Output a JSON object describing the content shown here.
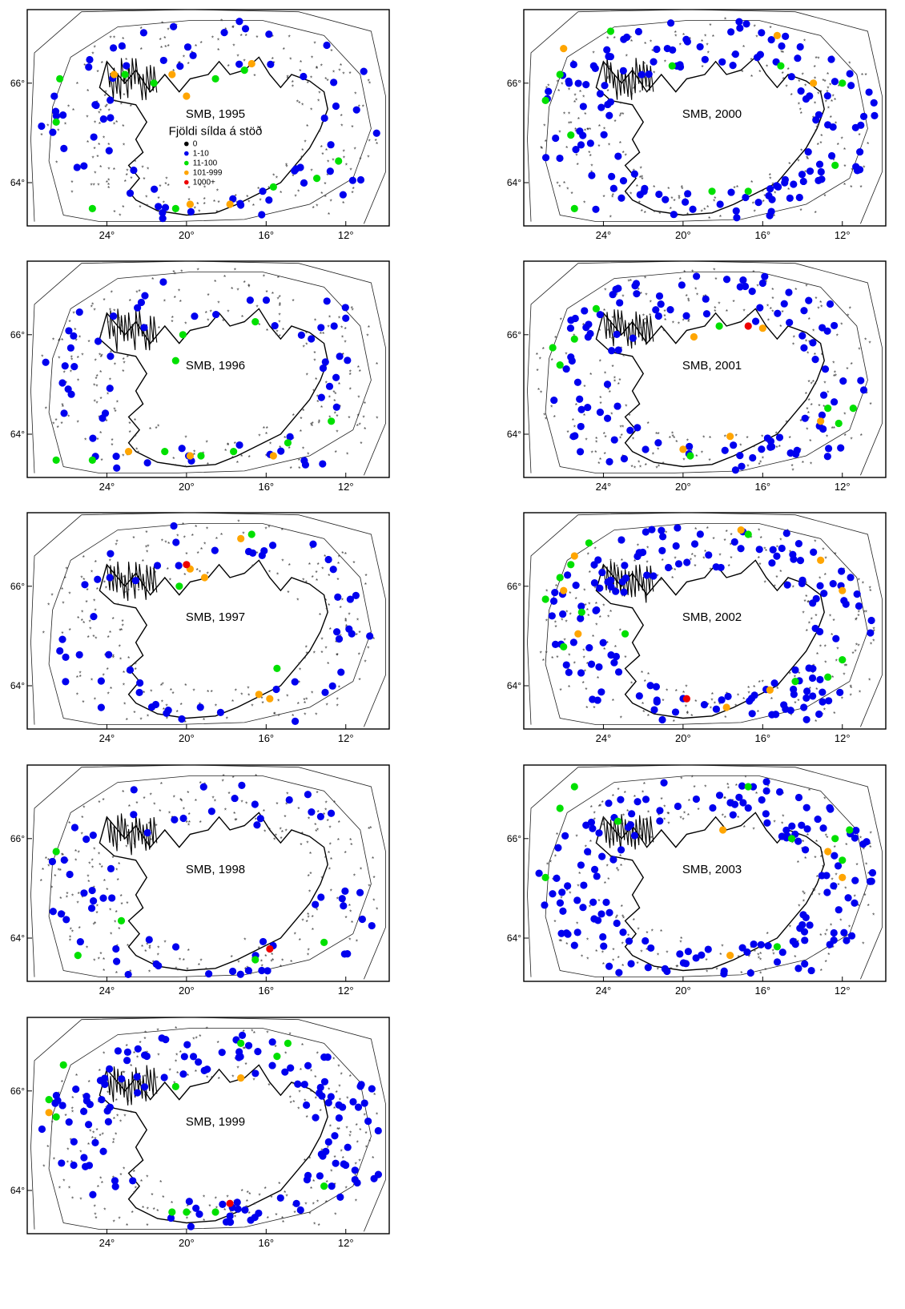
{
  "figure": {
    "colors": {
      "0": "#000000",
      "1-10": "#0000ee",
      "11-100": "#00e000",
      "101-999": "#ffa500",
      "1000+": "#ee0000",
      "grid_marker": "#333333",
      "frame": "#000000"
    },
    "legend": {
      "title": "Fjöldi sílda á stöð",
      "entries": [
        {
          "label": "0",
          "color_key": "0"
        },
        {
          "label": "1-10",
          "color_key": "1-10"
        },
        {
          "label": "11-100",
          "color_key": "11-100"
        },
        {
          "label": "101-999",
          "color_key": "101-999"
        },
        {
          "label": "1000+",
          "color_key": "1000+"
        }
      ]
    },
    "x_ticks": [
      "24°",
      "20°",
      "16°",
      "12°"
    ],
    "y_ticks": [
      "66°",
      "64°"
    ],
    "panels": [
      {
        "label": "SMB, 1995",
        "has_legend": true,
        "orange": [
          [
            0.24,
            0.3
          ],
          [
            0.4,
            0.3
          ],
          [
            0.62,
            0.25
          ],
          [
            0.45,
            0.9
          ],
          [
            0.56,
            0.9
          ],
          [
            0.44,
            0.4
          ]
        ],
        "red": [],
        "green": [
          [
            0.09,
            0.32
          ],
          [
            0.18,
            0.92
          ],
          [
            0.27,
            0.3
          ],
          [
            0.41,
            0.92
          ],
          [
            0.52,
            0.32
          ],
          [
            0.6,
            0.28
          ],
          [
            0.68,
            0.82
          ],
          [
            0.8,
            0.78
          ],
          [
            0.86,
            0.7
          ],
          [
            0.35,
            0.34
          ],
          [
            0.08,
            0.52
          ]
        ]
      },
      {
        "label": "SMB, 2000",
        "has_legend": false,
        "orange": [
          [
            0.11,
            0.18
          ],
          [
            0.7,
            0.12
          ],
          [
            0.8,
            0.34
          ]
        ],
        "red": [],
        "green": [
          [
            0.06,
            0.42
          ],
          [
            0.1,
            0.3
          ],
          [
            0.13,
            0.58
          ],
          [
            0.24,
            0.1
          ],
          [
            0.41,
            0.26
          ],
          [
            0.52,
            0.84
          ],
          [
            0.62,
            0.84
          ],
          [
            0.71,
            0.26
          ],
          [
            0.88,
            0.34
          ],
          [
            0.86,
            0.72
          ],
          [
            0.14,
            0.92
          ]
        ]
      },
      {
        "label": "SMB, 1996",
        "has_legend": false,
        "orange": [
          [
            0.28,
            0.88
          ],
          [
            0.45,
            0.9
          ],
          [
            0.68,
            0.9
          ]
        ],
        "red": [],
        "green": [
          [
            0.18,
            0.92
          ],
          [
            0.38,
            0.88
          ],
          [
            0.48,
            0.9
          ],
          [
            0.57,
            0.88
          ],
          [
            0.72,
            0.84
          ],
          [
            0.84,
            0.74
          ],
          [
            0.43,
            0.34
          ],
          [
            0.63,
            0.28
          ],
          [
            0.41,
            0.46
          ],
          [
            0.08,
            0.92
          ]
        ]
      },
      {
        "label": "SMB, 2001",
        "has_legend": false,
        "orange": [
          [
            0.47,
            0.35
          ],
          [
            0.66,
            0.31
          ],
          [
            0.44,
            0.87
          ],
          [
            0.57,
            0.81
          ],
          [
            0.82,
            0.74
          ]
        ],
        "red": [
          [
            0.62,
            0.3
          ]
        ],
        "green": [
          [
            0.08,
            0.4
          ],
          [
            0.14,
            0.36
          ],
          [
            0.1,
            0.48
          ],
          [
            0.2,
            0.22
          ],
          [
            0.46,
            0.9
          ],
          [
            0.54,
            0.3
          ],
          [
            0.84,
            0.68
          ],
          [
            0.87,
            0.75
          ],
          [
            0.91,
            0.68
          ]
        ]
      },
      {
        "label": "SMB, 1997",
        "has_legend": false,
        "orange": [
          [
            0.45,
            0.26
          ],
          [
            0.49,
            0.3
          ],
          [
            0.59,
            0.12
          ],
          [
            0.64,
            0.84
          ],
          [
            0.67,
            0.86
          ]
        ],
        "red": [
          [
            0.44,
            0.24
          ]
        ],
        "green": [
          [
            0.42,
            0.34
          ],
          [
            0.62,
            0.1
          ],
          [
            0.69,
            0.72
          ]
        ],
        "dense": false
      },
      {
        "label": "SMB, 2002",
        "has_legend": false,
        "orange": [
          [
            0.14,
            0.2
          ],
          [
            0.11,
            0.36
          ],
          [
            0.15,
            0.56
          ],
          [
            0.56,
            0.9
          ],
          [
            0.68,
            0.82
          ],
          [
            0.82,
            0.22
          ],
          [
            0.6,
            0.08
          ],
          [
            0.88,
            0.36
          ]
        ],
        "red": [
          [
            0.45,
            0.86
          ]
        ],
        "green": [
          [
            0.06,
            0.4
          ],
          [
            0.1,
            0.3
          ],
          [
            0.13,
            0.24
          ],
          [
            0.18,
            0.14
          ],
          [
            0.16,
            0.46
          ],
          [
            0.11,
            0.62
          ],
          [
            0.28,
            0.56
          ],
          [
            0.62,
            0.1
          ],
          [
            0.75,
            0.78
          ],
          [
            0.88,
            0.68
          ],
          [
            0.84,
            0.76
          ]
        ]
      },
      {
        "label": "SMB, 1998",
        "has_legend": false,
        "orange": [],
        "red": [
          [
            0.67,
            0.85
          ]
        ],
        "green": [
          [
            0.14,
            0.88
          ],
          [
            0.26,
            0.72
          ],
          [
            0.63,
            0.9
          ],
          [
            0.82,
            0.82
          ],
          [
            0.08,
            0.4
          ]
        ]
      },
      {
        "label": "SMB, 2003",
        "has_legend": false,
        "orange": [
          [
            0.55,
            0.3
          ],
          [
            0.57,
            0.88
          ],
          [
            0.84,
            0.4
          ],
          [
            0.88,
            0.52
          ]
        ],
        "red": [],
        "green": [
          [
            0.06,
            0.52
          ],
          [
            0.1,
            0.2
          ],
          [
            0.14,
            0.1
          ],
          [
            0.26,
            0.26
          ],
          [
            0.62,
            0.1
          ],
          [
            0.74,
            0.34
          ],
          [
            0.86,
            0.34
          ],
          [
            0.88,
            0.44
          ],
          [
            0.9,
            0.3
          ],
          [
            0.7,
            0.84
          ]
        ]
      },
      {
        "label": "SMB, 1999",
        "has_legend": false,
        "orange": [
          [
            0.06,
            0.44
          ],
          [
            0.59,
            0.28
          ]
        ],
        "red": [
          [
            0.56,
            0.86
          ]
        ],
        "green": [
          [
            0.06,
            0.38
          ],
          [
            0.1,
            0.22
          ],
          [
            0.08,
            0.46
          ],
          [
            0.4,
            0.9
          ],
          [
            0.44,
            0.9
          ],
          [
            0.52,
            0.9
          ],
          [
            0.59,
            0.12
          ],
          [
            0.69,
            0.18
          ],
          [
            0.72,
            0.12
          ],
          [
            0.41,
            0.32
          ],
          [
            0.82,
            0.78
          ]
        ]
      }
    ]
  }
}
